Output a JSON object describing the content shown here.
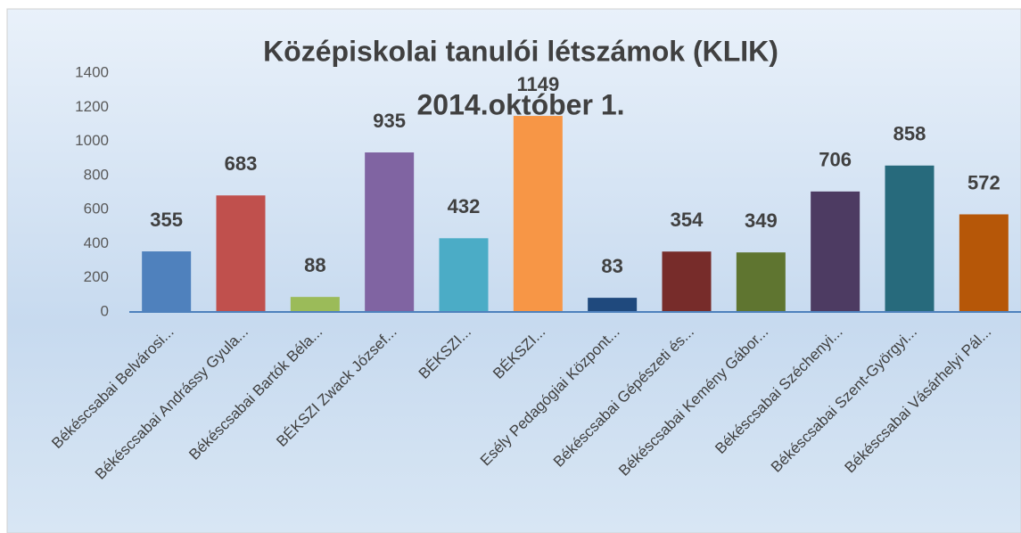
{
  "chart_data": {
    "type": "bar",
    "title": "Középiskolai tanulói létszámok (KLIK)",
    "subtitle": "2014.október 1.",
    "categories": [
      "Békéscsabai Belvárosi...",
      "Békéscsabai Andrássy Gyula...",
      "Békéscsabai Bartók Béla...",
      "BÉKSZI Zwack József...",
      "BÉKSZI...",
      "BÉKSZI...",
      "Esély Pedagógiai Központ...",
      "Békéscsabai Gépészeti és...",
      "Békéscsabai Kemény Gábor...",
      "Békéscsabai Széchenyi...",
      "Békéscsabai Szent-Györgyi...",
      "Békéscsabai Vásárhelyi Pál..."
    ],
    "values": [
      355,
      683,
      88,
      935,
      432,
      1149,
      83,
      354,
      349,
      706,
      858,
      572
    ],
    "colors": [
      "#4f81bd",
      "#c0504d",
      "#9bbb59",
      "#8064a2",
      "#4bacc6",
      "#f79646",
      "#1f497d",
      "#772c2a",
      "#5f7530",
      "#4d3b62",
      "#276a7c",
      "#b65708"
    ],
    "ylim": [
      0,
      1400
    ],
    "yticks": [
      0,
      200,
      400,
      600,
      800,
      1000,
      1200,
      1400
    ],
    "grid": false
  }
}
